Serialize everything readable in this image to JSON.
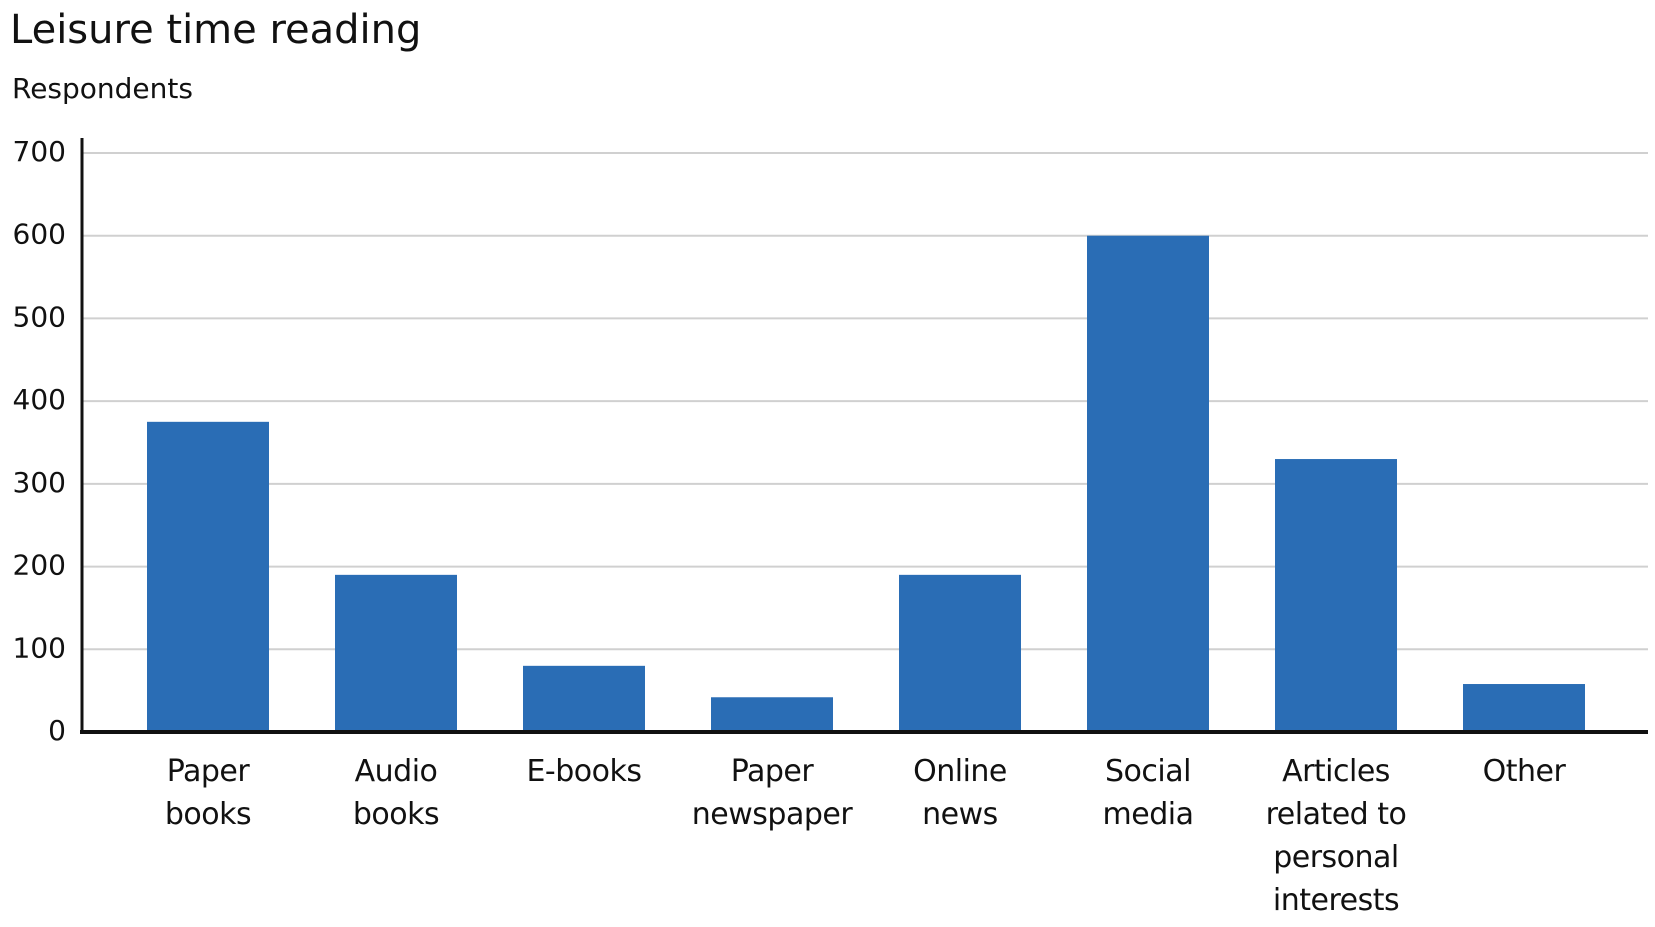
{
  "chart_data": {
    "type": "bar",
    "title": "Leisure time reading",
    "y_label": "Respondents",
    "categories": [
      "Paper\nbooks",
      "Audio\nbooks",
      "E-books",
      "Paper\nnewspaper",
      "Online\nnews",
      "Social\nmedia",
      "Articles\nrelated to\npersonal\ninterests",
      "Other"
    ],
    "values": [
      375,
      190,
      80,
      42,
      190,
      600,
      330,
      58
    ],
    "color": "#2a6db5",
    "ylim": [
      0,
      700
    ],
    "yticks": [
      0,
      100,
      200,
      300,
      400,
      500,
      600,
      700
    ],
    "grid": true
  }
}
